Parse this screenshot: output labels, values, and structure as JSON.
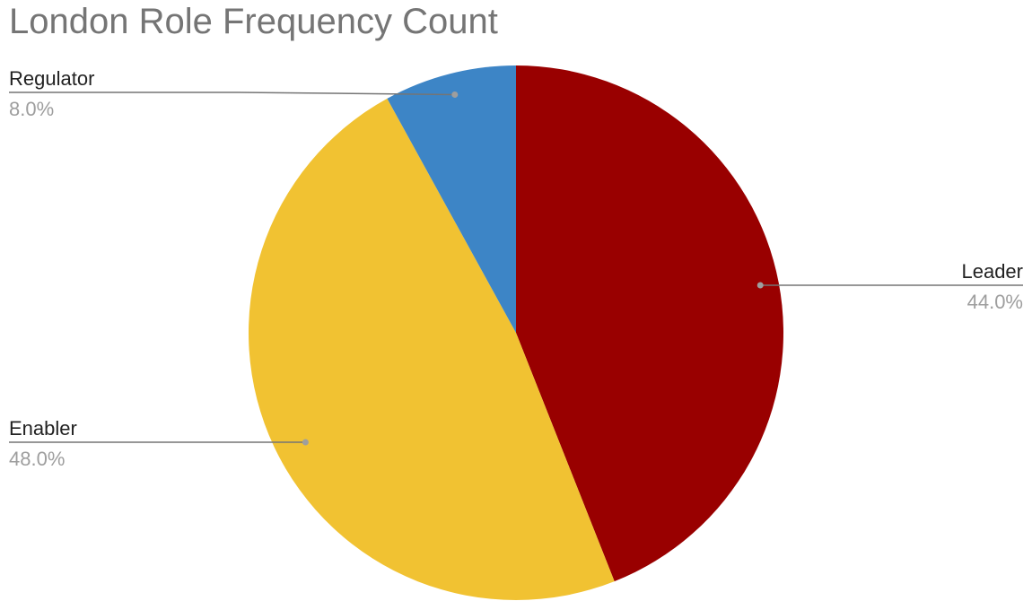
{
  "chart_data": {
    "type": "pie",
    "title": "London Role Frequency Count",
    "slices": [
      {
        "name": "Leader",
        "value": 44.0,
        "label": "44.0%",
        "color": "#990000"
      },
      {
        "name": "Enabler",
        "value": 48.0,
        "label": "48.0%",
        "color": "#f1c232"
      },
      {
        "name": "Regulator",
        "value": 8.0,
        "label": "8.0%",
        "color": "#3d85c6"
      }
    ],
    "start_angle_deg": 0,
    "direction": "clockwise",
    "legend": "none"
  }
}
